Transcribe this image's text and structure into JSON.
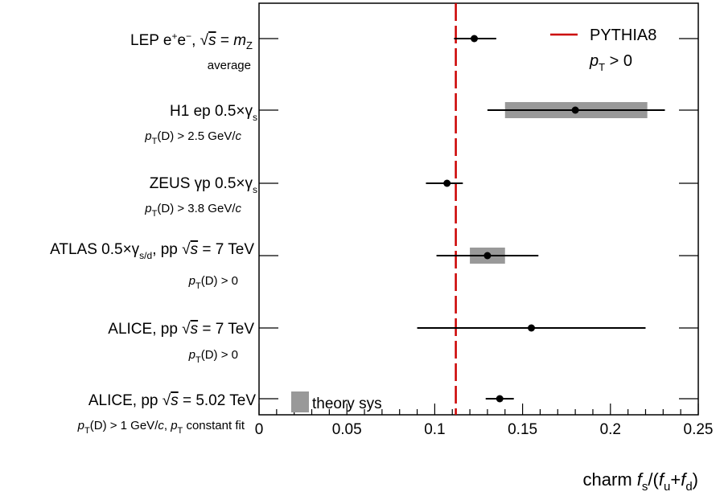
{
  "chart_data": {
    "type": "scatter",
    "xlabel": "charm f_s/(f_u+f_d)",
    "xlim": [
      0,
      0.25
    ],
    "x_ticks": [
      0,
      0.05,
      0.1,
      0.15,
      0.2,
      0.25
    ],
    "x_tick_labels": [
      "0",
      "0.05",
      "0.1",
      "0.15",
      "0.2",
      "0.25"
    ],
    "reference_line": {
      "name": "PYTHIA8",
      "condition": "p_T > 0",
      "x": 0.112,
      "color": "#cc0000",
      "style": "dashed"
    },
    "theory_sys_label": "theory sys",
    "sys_color": "#999999",
    "points": [
      {
        "label": "LEP  e⁺e⁻, √s = m_Z",
        "sublabel": "average",
        "x": 0.1225,
        "xerr_low": 0.0115,
        "xerr_high": 0.0125,
        "sys": null
      },
      {
        "label": "H1 ep 0.5×γ_s",
        "sublabel": "p_T(D) > 2.5 GeV/c",
        "x": 0.18,
        "xerr_low": 0.05,
        "xerr_high": 0.051,
        "sys": [
          0.14,
          0.221
        ]
      },
      {
        "label": "ZEUS γp 0.5×γ_s",
        "sublabel": "p_T(D) > 3.8 GeV/c",
        "x": 0.107,
        "xerr_low": 0.012,
        "xerr_high": 0.009,
        "sys": null
      },
      {
        "label": "ATLAS 0.5×γ_s/d, pp √s = 7 TeV",
        "sublabel": "p_T(D) > 0",
        "x": 0.13,
        "xerr_low": 0.029,
        "xerr_high": 0.029,
        "sys": [
          0.12,
          0.14
        ]
      },
      {
        "label": "ALICE, pp √s = 7 TeV",
        "sublabel": "p_T(D) > 0",
        "x": 0.155,
        "xerr_low": 0.065,
        "xerr_high": 0.065,
        "sys": null
      },
      {
        "label": "ALICE, pp √s = 5.02 TeV",
        "sublabel": "p_T(D) > 1 GeV/c, p_T constant fit",
        "x": 0.137,
        "xerr_low": 0.008,
        "xerr_high": 0.008,
        "sys": null
      }
    ]
  }
}
